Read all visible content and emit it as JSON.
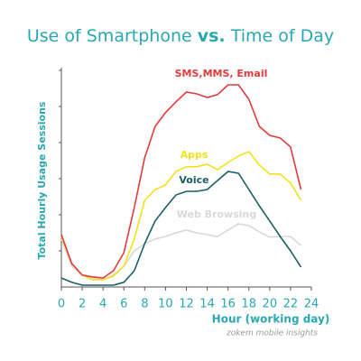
{
  "chart_data": {
    "type": "line",
    "title": [
      "Use of Smartphone",
      "vs.",
      "Time of Day"
    ],
    "x_label": "Hour (working day)",
    "y_label": "Total Hourly Usage Sessions",
    "source": "zokem mobile insights",
    "x": [
      0,
      1,
      2,
      3,
      4,
      5,
      6,
      7,
      8,
      9,
      10,
      11,
      12,
      13,
      14,
      15,
      16,
      17,
      18,
      19,
      20,
      21,
      22,
      23
    ],
    "xlim": [
      0,
      24
    ],
    "xticks": [
      0,
      2,
      4,
      6,
      8,
      10,
      12,
      14,
      16,
      18,
      20,
      22,
      24
    ],
    "ylim": [
      0,
      6
    ],
    "yticks": [
      1,
      2,
      3,
      4,
      5,
      6
    ],
    "series": [
      {
        "name": "SMS,MMS, Email",
        "color": "#e23a3c",
        "values": [
          1.45,
          0.65,
          0.33,
          0.28,
          0.25,
          0.45,
          0.95,
          2.2,
          3.58,
          4.45,
          4.83,
          5.13,
          5.4,
          5.35,
          5.25,
          5.33,
          5.6,
          5.6,
          5.2,
          4.45,
          4.2,
          4.13,
          3.88,
          2.7
        ]
      },
      {
        "name": "Apps",
        "color": "#f2e11c",
        "values": [
          1.4,
          0.65,
          0.33,
          0.2,
          0.2,
          0.3,
          0.58,
          1.33,
          2.4,
          2.7,
          2.83,
          3.2,
          3.33,
          3.33,
          3.4,
          3.25,
          3.45,
          3.63,
          3.75,
          3.38,
          3.13,
          3.13,
          2.88,
          2.4
        ]
      },
      {
        "name": "Voice",
        "color": "#1b5f66",
        "values": [
          0.25,
          0.13,
          0.05,
          0.05,
          0.05,
          0.05,
          0.13,
          0.45,
          1.2,
          1.83,
          2.2,
          2.55,
          2.65,
          2.65,
          2.7,
          2.95,
          3.2,
          3.15,
          2.7,
          2.25,
          1.83,
          1.4,
          1.0,
          0.55
        ]
      },
      {
        "name": "Web Browsing",
        "color": "#d8d8d8",
        "values": [
          1.33,
          0.58,
          0.33,
          0.25,
          0.2,
          0.33,
          0.58,
          1.0,
          1.2,
          1.33,
          1.4,
          1.5,
          1.58,
          1.5,
          1.45,
          1.4,
          1.58,
          1.75,
          1.7,
          1.53,
          1.38,
          1.4,
          1.4,
          1.15
        ]
      }
    ]
  }
}
